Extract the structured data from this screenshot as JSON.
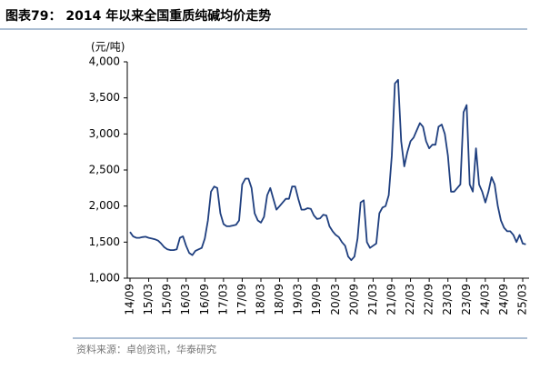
{
  "chart_data": {
    "type": "line",
    "title": "图表79： 2014 年以来全国重质纯碱均价走势",
    "y_label": "(元/吨)",
    "source": "资料来源：卓创资讯，华泰研究",
    "categories": [
      "14/09",
      null,
      null,
      null,
      null,
      null,
      "15/03",
      null,
      null,
      null,
      null,
      null,
      "15/09",
      null,
      null,
      null,
      null,
      null,
      "16/03",
      null,
      null,
      null,
      null,
      null,
      "16/09",
      null,
      null,
      null,
      null,
      null,
      "17/03",
      null,
      null,
      null,
      null,
      null,
      "17/09",
      null,
      null,
      null,
      null,
      null,
      "18/03",
      null,
      null,
      null,
      null,
      null,
      "18/09",
      null,
      null,
      null,
      null,
      null,
      "19/03",
      null,
      null,
      null,
      null,
      null,
      "19/09",
      null,
      null,
      null,
      null,
      null,
      "20/03",
      null,
      null,
      null,
      null,
      null,
      "20/09",
      null,
      null,
      null,
      null,
      null,
      "21/03",
      null,
      null,
      null,
      null,
      null,
      "21/09",
      null,
      null,
      null,
      null,
      null,
      "22/03",
      null,
      null,
      null,
      null,
      null,
      "22/09",
      null,
      null,
      null,
      null,
      null,
      "23/03",
      null,
      null,
      null,
      null,
      null,
      "23/09",
      null,
      null,
      null,
      null,
      null,
      "24/03",
      null,
      null,
      null,
      null,
      null,
      "24/09",
      null,
      null,
      null,
      null,
      null,
      "25/03",
      null
    ],
    "values": [
      1640,
      1580,
      1560,
      1560,
      1570,
      1575,
      1560,
      1550,
      1540,
      1520,
      1480,
      1430,
      1400,
      1390,
      1390,
      1400,
      1560,
      1580,
      1450,
      1350,
      1320,
      1380,
      1400,
      1420,
      1550,
      1800,
      2200,
      2270,
      2250,
      1900,
      1750,
      1720,
      1720,
      1730,
      1740,
      1800,
      2300,
      2380,
      2380,
      2250,
      1900,
      1800,
      1770,
      1850,
      2150,
      2250,
      2100,
      1950,
      2000,
      2050,
      2100,
      2100,
      2270,
      2270,
      2100,
      1950,
      1950,
      1970,
      1960,
      1870,
      1820,
      1830,
      1880,
      1870,
      1720,
      1650,
      1600,
      1570,
      1500,
      1450,
      1300,
      1250,
      1300,
      1550,
      2050,
      2080,
      1500,
      1420,
      1450,
      1480,
      1900,
      1980,
      2000,
      2150,
      2700,
      3700,
      3750,
      2900,
      2550,
      2750,
      2900,
      2950,
      3050,
      3150,
      3100,
      2900,
      2800,
      2850,
      2850,
      3100,
      3130,
      3000,
      2700,
      2200,
      2200,
      2250,
      2300,
      3300,
      3400,
      2300,
      2200,
      2800,
      2300,
      2200,
      2050,
      2200,
      2400,
      2300,
      2000,
      1800,
      1700,
      1650,
      1650,
      1600,
      1500,
      1600,
      1480,
      1470
    ],
    "color": "#1f3f7f",
    "ylim": [
      1000,
      4000
    ],
    "yticks": [
      {
        "value": 1000,
        "label": "1,000"
      },
      {
        "value": 1500,
        "label": "1,500"
      },
      {
        "value": 2000,
        "label": "2,000"
      },
      {
        "value": 2500,
        "label": "2,500"
      },
      {
        "value": 3000,
        "label": "3,000"
      },
      {
        "value": 3500,
        "label": "3,500"
      },
      {
        "value": 4000,
        "label": "4,000"
      }
    ]
  }
}
